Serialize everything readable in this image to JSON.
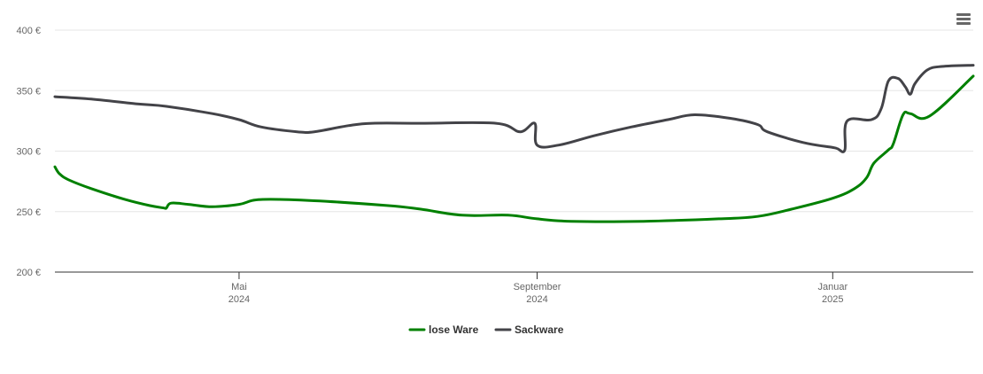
{
  "chart_data": {
    "type": "line",
    "xlim": [
      "2024-02-15",
      "2025-02-28"
    ],
    "ylim": [
      200,
      400
    ],
    "y_ticks": [
      {
        "value": 200,
        "label": "200 €"
      },
      {
        "value": 250,
        "label": "250 €"
      },
      {
        "value": 300,
        "label": "300 €"
      },
      {
        "value": 350,
        "label": "350 €"
      },
      {
        "value": 400,
        "label": "400 €"
      }
    ],
    "x_ticks": [
      {
        "date": "2024-05-01",
        "month": "Mai",
        "year": "2024"
      },
      {
        "date": "2024-09-01",
        "month": "September",
        "year": "2024"
      },
      {
        "date": "2025-01-01",
        "month": "Januar",
        "year": "2025"
      }
    ],
    "grid": true,
    "legend_position": "bottom-center",
    "series": [
      {
        "name": "lose Ware",
        "color": "#008000",
        "points": [
          [
            "2024-02-15",
            287
          ],
          [
            "2024-02-17",
            281
          ],
          [
            "2024-02-21",
            276
          ],
          [
            "2024-03-01",
            269
          ],
          [
            "2024-03-15",
            260
          ],
          [
            "2024-03-25",
            255
          ],
          [
            "2024-03-31",
            253
          ],
          [
            "2024-04-01",
            253
          ],
          [
            "2024-04-03",
            257
          ],
          [
            "2024-04-10",
            256
          ],
          [
            "2024-04-20",
            254
          ],
          [
            "2024-05-01",
            256
          ],
          [
            "2024-05-10",
            260
          ],
          [
            "2024-06-01",
            259
          ],
          [
            "2024-07-01",
            255
          ],
          [
            "2024-07-15",
            252
          ],
          [
            "2024-08-01",
            247
          ],
          [
            "2024-08-20",
            247
          ],
          [
            "2024-09-01",
            244
          ],
          [
            "2024-09-15",
            242
          ],
          [
            "2024-10-15",
            242
          ],
          [
            "2024-11-15",
            244
          ],
          [
            "2024-12-01",
            246
          ],
          [
            "2024-12-15",
            252
          ],
          [
            "2025-01-01",
            261
          ],
          [
            "2025-01-10",
            269
          ],
          [
            "2025-01-15",
            278
          ],
          [
            "2025-01-18",
            290
          ],
          [
            "2025-01-24",
            301
          ],
          [
            "2025-01-26",
            306
          ],
          [
            "2025-01-30",
            330
          ],
          [
            "2025-02-02",
            331
          ],
          [
            "2025-02-10",
            329
          ],
          [
            "2025-02-28",
            362
          ]
        ]
      },
      {
        "name": "Sackware",
        "color": "#434348",
        "points": [
          [
            "2024-02-15",
            345
          ],
          [
            "2024-03-01",
            343
          ],
          [
            "2024-03-20",
            339
          ],
          [
            "2024-04-01",
            337
          ],
          [
            "2024-04-20",
            331
          ],
          [
            "2024-05-01",
            326
          ],
          [
            "2024-05-10",
            320
          ],
          [
            "2024-05-25",
            316
          ],
          [
            "2024-06-01",
            316
          ],
          [
            "2024-06-15",
            321
          ],
          [
            "2024-06-25",
            323
          ],
          [
            "2024-07-15",
            323
          ],
          [
            "2024-08-31",
            323
          ],
          [
            "2024-08-15",
            323
          ],
          [
            "2024-08-25",
            316
          ],
          [
            "2024-09-01",
            305
          ],
          [
            "2024-09-10",
            305
          ],
          [
            "2024-09-25",
            313
          ],
          [
            "2024-10-10",
            320
          ],
          [
            "2024-10-25",
            326
          ],
          [
            "2024-11-05",
            330
          ],
          [
            "2024-11-20",
            327
          ],
          [
            "2024-12-01",
            322
          ],
          [
            "2024-12-05",
            316
          ],
          [
            "2024-12-20",
            307
          ],
          [
            "2025-01-01",
            303
          ],
          [
            "2025-01-03",
            302
          ],
          [
            "2025-01-06",
            301
          ],
          [
            "2025-01-07",
            325
          ],
          [
            "2025-01-17",
            326
          ],
          [
            "2025-01-21",
            335
          ],
          [
            "2025-01-24",
            358
          ],
          [
            "2025-01-28",
            360
          ],
          [
            "2025-01-31",
            353
          ],
          [
            "2025-02-02",
            347
          ],
          [
            "2025-02-04",
            356
          ],
          [
            "2025-02-09",
            367
          ],
          [
            "2025-02-15",
            370
          ],
          [
            "2025-02-28",
            371
          ]
        ]
      }
    ]
  },
  "icons": {
    "menu": "hamburger-menu-icon"
  }
}
